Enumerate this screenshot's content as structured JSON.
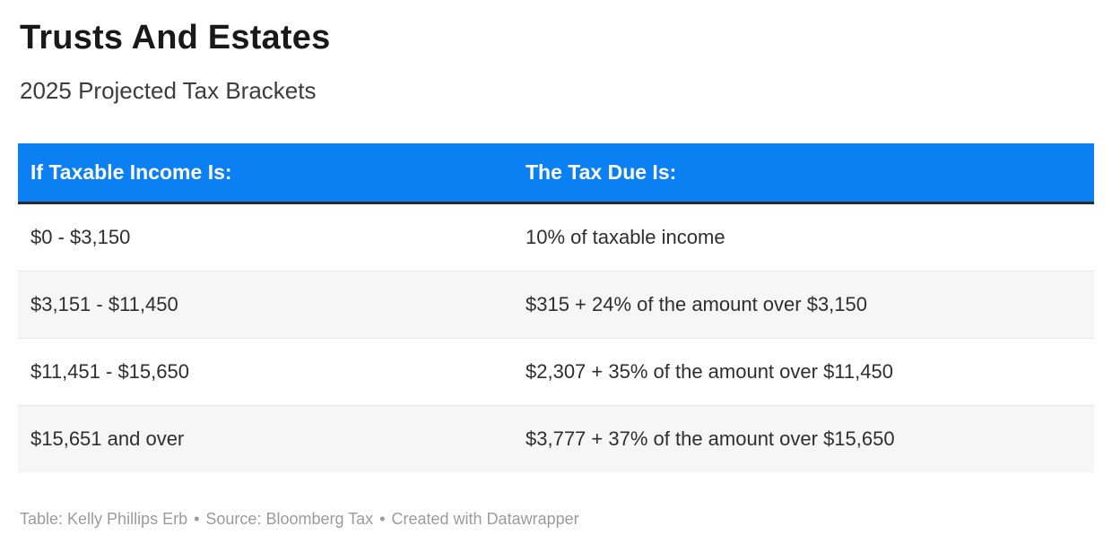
{
  "title": "Trusts And Estates",
  "subtitle": "2025 Projected Tax Brackets",
  "colors": {
    "header_bg": "#0a80f2",
    "header_text": "#ffffff",
    "header_bottom_border": "#2b2b2b",
    "row_alt_bg": "#f6f6f6",
    "row_divider": "#e8e8e8",
    "body_text": "#2e2e2e",
    "title_text": "#191919",
    "footer_text": "#9b9b9b"
  },
  "chart_data": {
    "type": "table",
    "title": "Trusts And Estates",
    "subtitle": "2025 Projected Tax Brackets",
    "columns": [
      "If Taxable Income Is:",
      "The Tax Due Is:"
    ],
    "rows": [
      [
        "$0 - $3,150",
        "10% of taxable income"
      ],
      [
        "$3,151 - $11,450",
        "$315 + 24% of the amount over $3,150"
      ],
      [
        "$11,451 - $15,650",
        "$2,307 + 35% of the amount over $11,450"
      ],
      [
        "$15,651 and over",
        "$3,777 + 37% of the amount over $15,650"
      ]
    ],
    "layout_hints": {
      "header_style": "blue-bar",
      "zebra_striping": true,
      "column_widths_pct": [
        46,
        54
      ]
    }
  },
  "footer": {
    "table_credit": "Table: Kelly Phillips Erb",
    "separator": "•",
    "source_prefix": "Source: ",
    "source_name": "Bloomberg Tax",
    "created_prefix": "Created with ",
    "created_name": "Datawrapper"
  }
}
